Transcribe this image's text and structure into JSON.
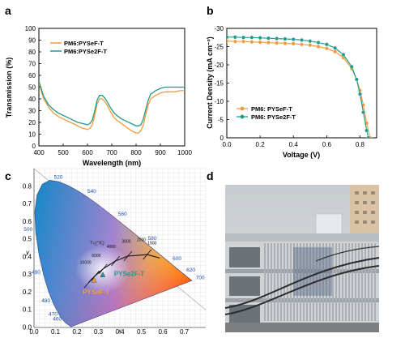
{
  "panels": {
    "a": "a",
    "b": "b",
    "c": "c",
    "d": "d"
  },
  "colors": {
    "orange": "#f39a3a",
    "teal": "#1f9a8a",
    "blue_text": "#1f4fb8",
    "cie_tc_label": "#333333"
  },
  "chart_data": [
    {
      "panel": "a",
      "type": "line",
      "xlabel": "Wavelength (nm)",
      "ylabel": "Transmission (%)",
      "xlim": [
        400,
        1000
      ],
      "ylim": [
        0,
        100
      ],
      "xticks": [
        400,
        500,
        600,
        700,
        800,
        900,
        1000
      ],
      "yticks": [
        0,
        10,
        20,
        30,
        40,
        50,
        60,
        70,
        80,
        90,
        100
      ],
      "legend_position": "top-left",
      "series": [
        {
          "name": "PM6:PYSeF-T",
          "color": "#f39a3a",
          "x": [
            400,
            420,
            440,
            460,
            480,
            500,
            520,
            540,
            560,
            580,
            600,
            610,
            620,
            630,
            640,
            650,
            660,
            670,
            680,
            690,
            700,
            710,
            720,
            740,
            760,
            780,
            800,
            810,
            820,
            830,
            840,
            850,
            860,
            880,
            900,
            920,
            940,
            960,
            980,
            1000
          ],
          "y": [
            53,
            40,
            33,
            28,
            25,
            23,
            21,
            19,
            17,
            15,
            14,
            15,
            18,
            26,
            36,
            40,
            40,
            38,
            35,
            31,
            27,
            24,
            22,
            19,
            16,
            13,
            11,
            11,
            13,
            18,
            27,
            35,
            40,
            43,
            45,
            46,
            46,
            46,
            47,
            47
          ]
        },
        {
          "name": "PM6:PYSe2F-T",
          "color": "#1f9a8a",
          "x": [
            400,
            420,
            440,
            460,
            480,
            500,
            520,
            540,
            560,
            580,
            600,
            610,
            620,
            630,
            640,
            650,
            660,
            670,
            680,
            690,
            700,
            710,
            720,
            740,
            760,
            780,
            800,
            810,
            820,
            830,
            840,
            850,
            860,
            880,
            900,
            920,
            940,
            960,
            980,
            1000
          ],
          "y": [
            55,
            42,
            35,
            31,
            28,
            26,
            24,
            22,
            20,
            19,
            18,
            19,
            22,
            30,
            39,
            43,
            43,
            41,
            38,
            34,
            31,
            28,
            26,
            23,
            21,
            19,
            17,
            17,
            18,
            23,
            31,
            39,
            44,
            47,
            49,
            50,
            50,
            50,
            50,
            50
          ]
        }
      ]
    },
    {
      "panel": "b",
      "type": "line",
      "xlabel": "Voltage (V)",
      "ylabel": "Current Density (mA cm⁻²)",
      "xlim": [
        0.0,
        0.9
      ],
      "ylim": [
        0,
        -30
      ],
      "y_inverted": true,
      "xticks": [
        0.0,
        0.2,
        0.4,
        0.6,
        0.8
      ],
      "yticks": [
        0,
        -5,
        -10,
        -15,
        -20,
        -25,
        -30
      ],
      "legend_position": "bottom-left",
      "series": [
        {
          "name": "PM6: PYSeF-T",
          "color": "#f39a3a",
          "marker": "circle",
          "x": [
            0.0,
            0.05,
            0.1,
            0.15,
            0.2,
            0.25,
            0.3,
            0.35,
            0.4,
            0.45,
            0.5,
            0.55,
            0.6,
            0.65,
            0.7,
            0.75,
            0.78,
            0.8,
            0.82,
            0.84,
            0.86
          ],
          "y": [
            -26.5,
            -26.4,
            -26.4,
            -26.3,
            -26.2,
            -26.1,
            -26.0,
            -25.9,
            -25.8,
            -25.6,
            -25.4,
            -25.0,
            -24.5,
            -23.6,
            -22.0,
            -19.0,
            -16.0,
            -13.0,
            -9.0,
            -4.0,
            0.0
          ]
        },
        {
          "name": "PM6: PYSe2F-T",
          "color": "#1f9a8a",
          "marker": "circle",
          "x": [
            0.0,
            0.05,
            0.1,
            0.15,
            0.2,
            0.25,
            0.3,
            0.35,
            0.4,
            0.45,
            0.5,
            0.55,
            0.6,
            0.65,
            0.7,
            0.75,
            0.78,
            0.8,
            0.82,
            0.84,
            0.85
          ],
          "y": [
            -27.6,
            -27.6,
            -27.5,
            -27.5,
            -27.4,
            -27.3,
            -27.2,
            -27.1,
            -27.0,
            -26.8,
            -26.5,
            -26.1,
            -25.6,
            -24.6,
            -22.8,
            -19.5,
            -16.0,
            -12.0,
            -7.0,
            -2.0,
            0.0
          ]
        }
      ]
    },
    {
      "panel": "c",
      "type": "scatter",
      "xlabel": "x",
      "ylabel": "y",
      "xlim": [
        0.0,
        0.8
      ],
      "ylim": [
        0.0,
        0.9
      ],
      "xticks": [
        0.0,
        0.1,
        0.2,
        0.3,
        0.4,
        0.5,
        0.6,
        0.7
      ],
      "yticks": [
        0.0,
        0.1,
        0.2,
        0.3,
        0.4,
        0.5,
        0.6,
        0.7,
        0.8
      ],
      "locus_wavelengths": [
        {
          "label": "520",
          "x": 0.074,
          "y": 0.834
        },
        {
          "label": "540",
          "x": 0.23,
          "y": 0.754
        },
        {
          "label": "560",
          "x": 0.373,
          "y": 0.624
        },
        {
          "label": "580",
          "x": 0.512,
          "y": 0.487
        },
        {
          "label": "600",
          "x": 0.627,
          "y": 0.373
        },
        {
          "label": "620",
          "x": 0.691,
          "y": 0.308
        },
        {
          "label": "700",
          "x": 0.735,
          "y": 0.265
        },
        {
          "label": "500",
          "x": 0.008,
          "y": 0.538
        },
        {
          "label": "490",
          "x": 0.045,
          "y": 0.295
        },
        {
          "label": "480",
          "x": 0.091,
          "y": 0.133
        },
        {
          "label": "470",
          "x": 0.124,
          "y": 0.058
        },
        {
          "label": "460",
          "x": 0.144,
          "y": 0.03
        }
      ],
      "planckian_label": "Tₕ(°K)",
      "planckian_temps": [
        "10000",
        "6000",
        "4000",
        "3000",
        "2000",
        "1500"
      ],
      "points": [
        {
          "name": "PYSe2F-T",
          "x": 0.32,
          "y": 0.3,
          "color": "#1f9a8a"
        },
        {
          "name": "PYSeF-T",
          "x": 0.28,
          "y": 0.27,
          "color": "#f39a3a"
        }
      ]
    }
  ]
}
